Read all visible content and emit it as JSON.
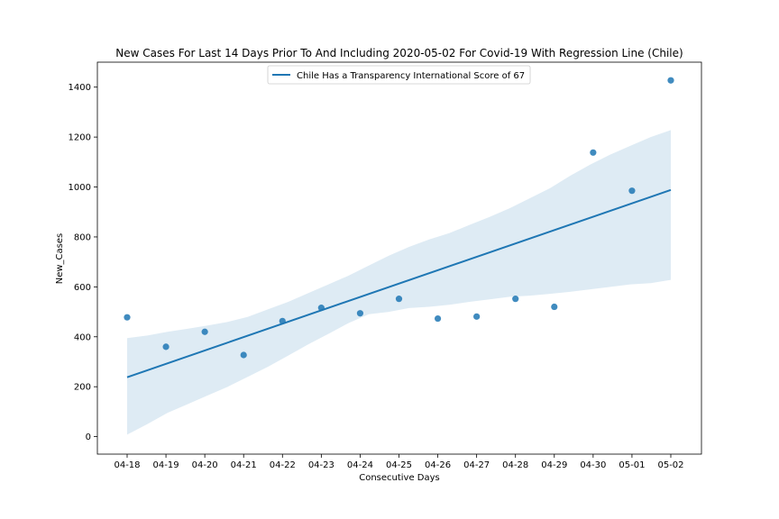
{
  "chart_data": {
    "type": "scatter",
    "title": "New Cases For Last 14 Days Prior To And Including 2020-05-02 For Covid-19 With Regression Line (Chile)",
    "xlabel": "Consecutive Days",
    "ylabel": "New_Cases",
    "categories": [
      "04-18",
      "04-19",
      "04-20",
      "04-21",
      "04-22",
      "04-23",
      "04-24",
      "04-25",
      "04-26",
      "04-27",
      "04-28",
      "04-29",
      "04-30",
      "05-01",
      "05-02"
    ],
    "series": [
      {
        "name": "Chile Has a Transparency International Score of 67",
        "values": [
          478,
          360,
          420,
          327,
          463,
          516,
          494,
          552,
          473,
          481,
          552,
          520,
          1138,
          985,
          1427
        ]
      }
    ],
    "regression": {
      "start": 238,
      "end": 988,
      "ci_lower": [
        8,
        50,
        95,
        130,
        165,
        200,
        240,
        280,
        325,
        370,
        412,
        455,
        490,
        500,
        515,
        520,
        528,
        540,
        550,
        560,
        565,
        572,
        580,
        590,
        600,
        610,
        615,
        628
      ],
      "ci_upper": [
        395,
        405,
        420,
        432,
        445,
        460,
        480,
        510,
        540,
        575,
        610,
        645,
        685,
        725,
        760,
        790,
        815,
        848,
        880,
        915,
        955,
        995,
        1045,
        1090,
        1130,
        1165,
        1200,
        1228
      ]
    },
    "ylim": [
      -70,
      1500
    ],
    "yticks": [
      0,
      200,
      400,
      600,
      800,
      1000,
      1200,
      1400
    ],
    "legend_position": "top-center",
    "grid": false,
    "colors": {
      "points": "#1f77b4",
      "line": "#1f77b4",
      "band": "#1f77b4"
    }
  }
}
